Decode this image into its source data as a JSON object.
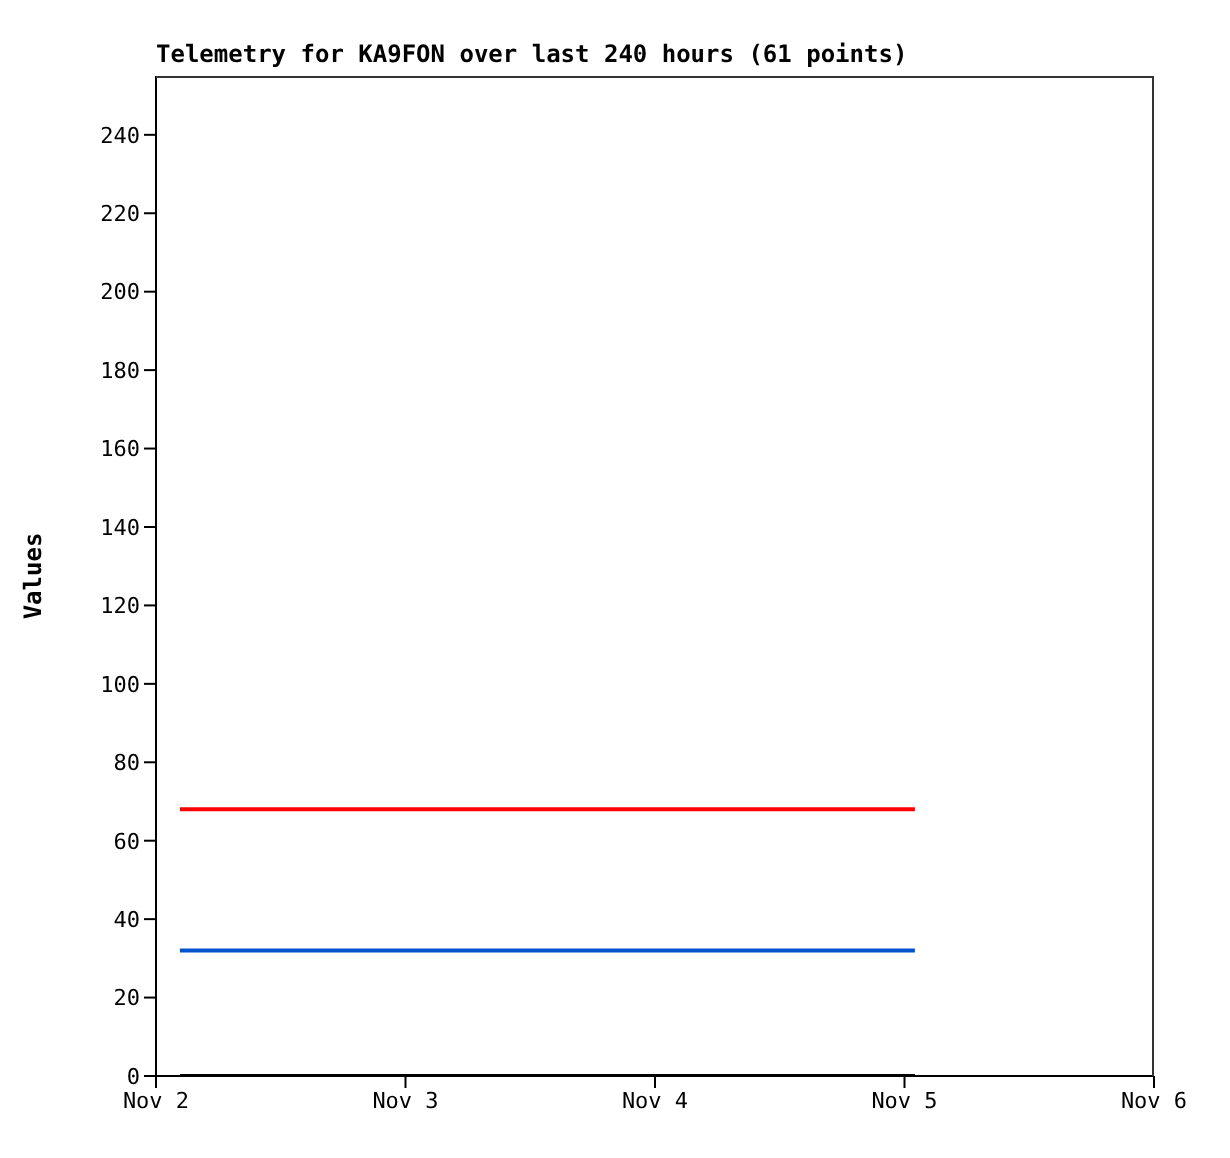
{
  "chart_data": {
    "type": "line",
    "title": "Telemetry for KA9FON over last 240 hours (61 points)",
    "ylabel": "Values",
    "xlim": [
      "--11-02",
      "--11-06"
    ],
    "xticks": [
      {
        "value": "--11-02",
        "label": "Nov 2"
      },
      {
        "value": "--11-03",
        "label": "Nov 3"
      },
      {
        "value": "--11-04",
        "label": "Nov 4"
      },
      {
        "value": "--11-05",
        "label": "Nov 5"
      },
      {
        "value": "--11-06",
        "label": "Nov 6"
      }
    ],
    "ylim": [
      0,
      255
    ],
    "yticks": [
      0,
      20,
      40,
      60,
      80,
      100,
      120,
      140,
      160,
      180,
      200,
      220,
      240
    ],
    "grid": false,
    "legend": false,
    "marker": "none",
    "line_style": "solid",
    "series": [
      {
        "color": "#ff0000",
        "x": [
          "--11-02T02:18",
          "--11-05T01:00"
        ],
        "values": [
          68,
          68
        ]
      },
      {
        "color": "#0055cc",
        "x": [
          "--11-02T02:18",
          "--11-05T01:00"
        ],
        "values": [
          32,
          32
        ]
      },
      {
        "color": "#000000",
        "x": [
          "--11-02T02:18",
          "--11-05T01:00"
        ],
        "values": [
          0,
          0
        ]
      }
    ]
  }
}
